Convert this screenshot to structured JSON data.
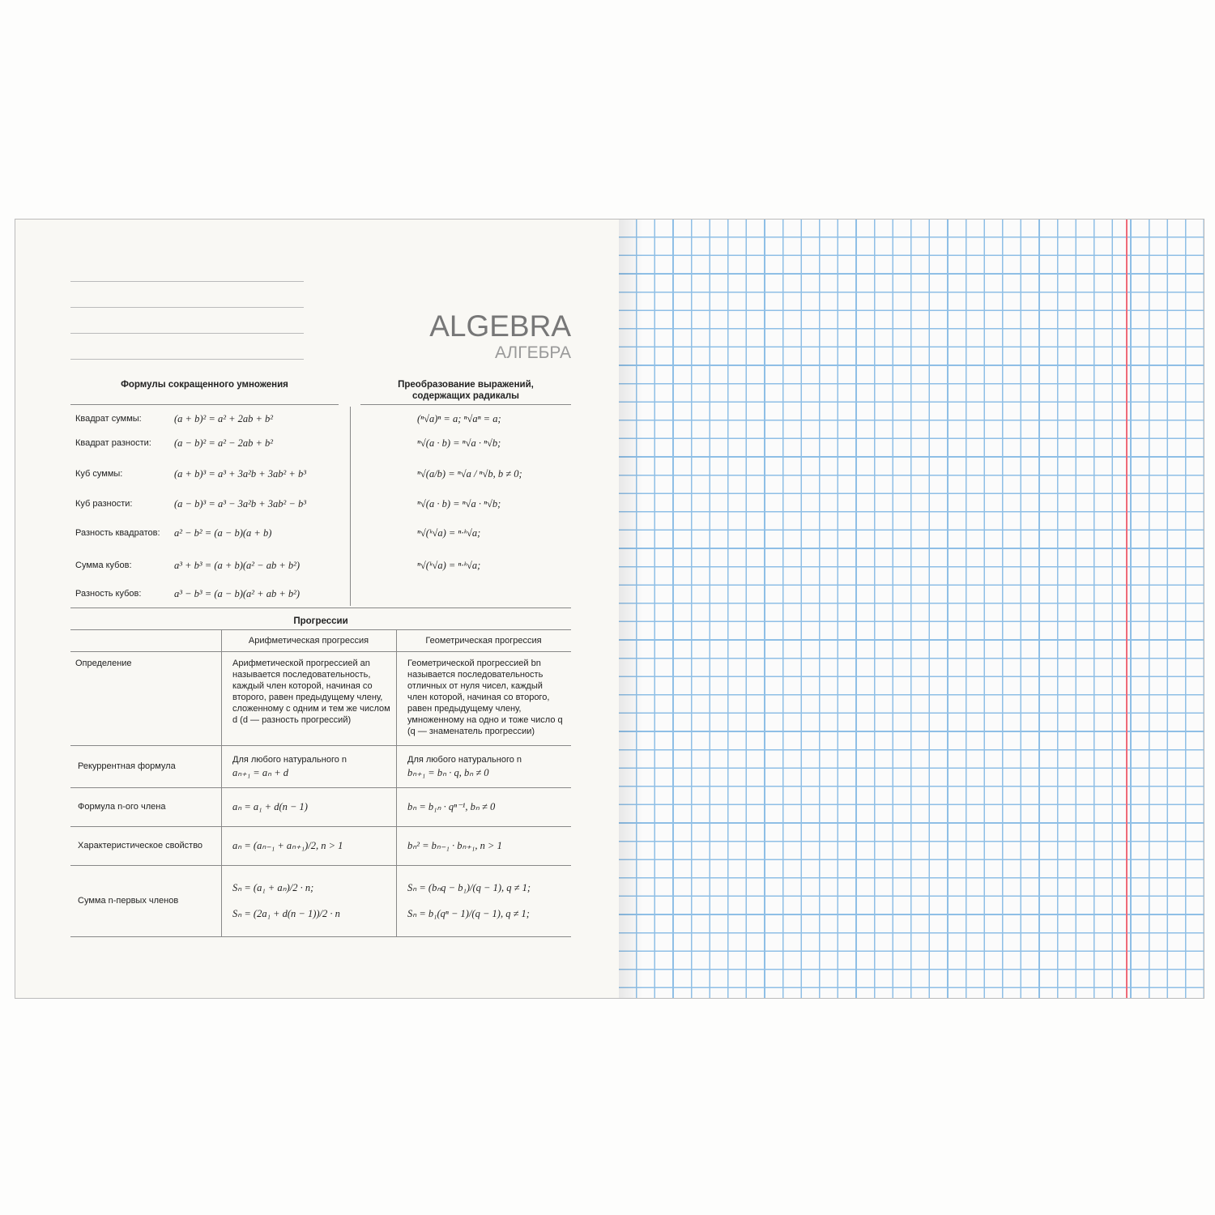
{
  "title": "ALGEBRA",
  "subtitle": "АЛГЕБРА",
  "formulas": {
    "heading": "Формулы сокращенного умножения",
    "rows": [
      {
        "label": "Квадрат суммы:",
        "formula": "(a + b)² = a² + 2ab + b²"
      },
      {
        "label": "Квадрат разности:",
        "formula": "(a − b)² = a² − 2ab + b²"
      },
      {
        "label": "Куб суммы:",
        "formula": "(a + b)³ = a³ + 3a²b + 3ab² + b³"
      },
      {
        "label": "Куб разности:",
        "formula": "(a − b)³ = a³ − 3a²b + 3ab² − b³"
      },
      {
        "label": "Разность квадратов:",
        "formula": "a² − b² = (a − b)(a + b)"
      },
      {
        "label": "Сумма кубов:",
        "formula": "a³ + b³ = (a + b)(a² − ab + b²)"
      },
      {
        "label": "Разность кубов:",
        "formula": "a³ − b³ = (a − b)(a² + ab + b²)"
      }
    ]
  },
  "radicals": {
    "heading": [
      "Преобразование выражений,",
      "содержащих радикалы"
    ],
    "formulas": [
      "(ⁿ√a)ⁿ = a;  ⁿ√aⁿ = a;",
      "ⁿ√(a · b) = ⁿ√a · ⁿ√b;",
      "ⁿ√(a/b) = ⁿ√a / ⁿ√b, b ≠ 0;",
      "ⁿ√(a · b) = ⁿ√a · ⁿ√b;",
      "ⁿ√(ᵏ√a) = ⁿ·ᵏ√a;",
      "ⁿ√(ᵏ√a) = ⁿ·ᵏ√a;"
    ]
  },
  "progressions": {
    "heading": "Прогрессии",
    "columns": [
      "Арифметическая прогрессия",
      "Геометрическая прогрессия"
    ],
    "rows": [
      {
        "label": "Определение",
        "arithmetic": [
          "Арифметической прогрессией an называется последовательность, каждый член которой, начиная со второго, равен предыдущему члену, сложенному с одним и тем же числом d (d — разность прогрессий)"
        ],
        "geometric": [
          "Геометрической прогрессией bn называется последовательность отличных от нуля чисел, каждый член которой, начиная со второго, равен предыдущему члену, умноженному на одно и тоже число q (q — знаменатель прогрессии)"
        ]
      },
      {
        "label": "Рекуррентная формула",
        "arithmetic": [
          "Для любого натурального n",
          "aₙ₊₁ = aₙ + d"
        ],
        "geometric": [
          "Для любого натурального n",
          "bₙ₊₁ = bₙ · q, bₙ ≠ 0"
        ]
      },
      {
        "label": "Формула n-ого члена",
        "arithmetic": [
          "aₙ = a₁ + d(n − 1)"
        ],
        "geometric": [
          "bₙ = b₁ₙ · qⁿ⁻¹, bₙ ≠ 0"
        ]
      },
      {
        "label": "Характеристическое свойство",
        "arithmetic": [
          "aₙ = (aₙ₋₁ + aₙ₊₁)/2, n > 1"
        ],
        "geometric": [
          "bₙ² = bₙ₋₁ · bₙ₊₁, n > 1"
        ]
      },
      {
        "label": "Сумма n-первых членов",
        "arithmetic": [
          "Sₙ = (a₁ + aₙ)/2 · n;",
          "Sₙ = (2a₁ + d(n − 1))/2 · n"
        ],
        "geometric": [
          "Sₙ = (bₙq − b₁)/(q − 1), q ≠ 1;",
          "Sₙ = b₁(qⁿ − 1)/(q − 1), q ≠ 1;"
        ]
      }
    ]
  }
}
